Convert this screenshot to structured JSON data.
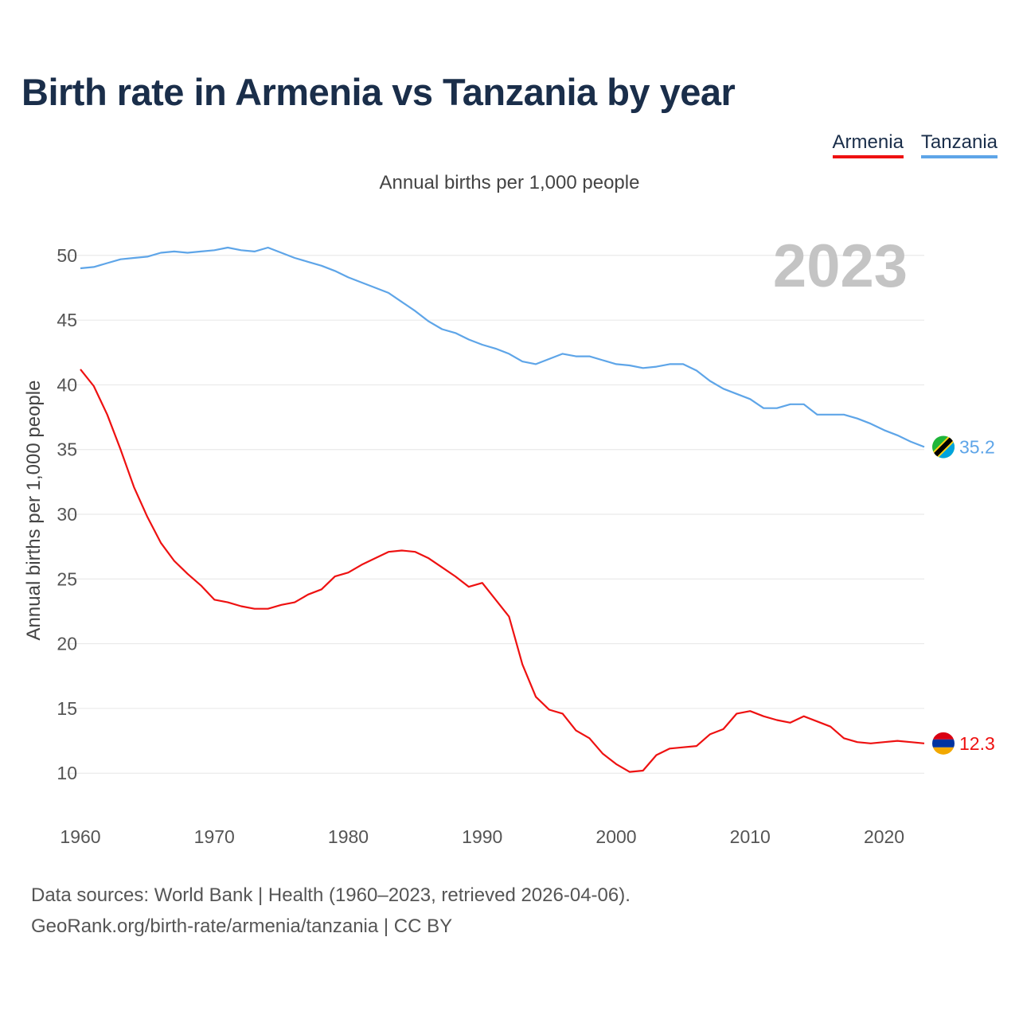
{
  "title": "Birth rate in Armenia vs Tanzania by year",
  "subtitle": "Annual births per 1,000 people",
  "legend": {
    "armenia": "Armenia",
    "tanzania": "Tanzania"
  },
  "footer": {
    "line1": "Data sources: World Bank | Health (1960–2023, retrieved 2026-04-06).",
    "line2": "GeoRank.org/birth-rate/armenia/tanzania | CC BY"
  },
  "colors": {
    "armenia": "#ee1111",
    "tanzania": "#5ea5e8",
    "title": "#1a2e4a",
    "grid": "#e6e6e6"
  },
  "chart_data": {
    "type": "line",
    "ylabel": "Annual births per 1,000 people",
    "xlabel": "",
    "ylim": [
      7,
      53
    ],
    "xlim": [
      1960,
      2023
    ],
    "x_ticks": [
      1960,
      1970,
      1980,
      1990,
      2000,
      2010,
      2020
    ],
    "y_ticks": [
      10,
      15,
      20,
      25,
      30,
      35,
      40,
      45,
      50
    ],
    "year_label": "2023",
    "grid": true,
    "legend_position": "top-right",
    "x": [
      1960,
      1961,
      1962,
      1963,
      1964,
      1965,
      1966,
      1967,
      1968,
      1969,
      1970,
      1971,
      1972,
      1973,
      1974,
      1975,
      1976,
      1977,
      1978,
      1979,
      1980,
      1981,
      1982,
      1983,
      1984,
      1985,
      1986,
      1987,
      1988,
      1989,
      1990,
      1991,
      1992,
      1993,
      1994,
      1995,
      1996,
      1997,
      1998,
      1999,
      2000,
      2001,
      2002,
      2003,
      2004,
      2005,
      2006,
      2007,
      2008,
      2009,
      2010,
      2011,
      2012,
      2013,
      2014,
      2015,
      2016,
      2017,
      2018,
      2019,
      2020,
      2021,
      2022,
      2023
    ],
    "series": [
      {
        "name": "Armenia",
        "color": "#ee1111",
        "end_label": "12.3",
        "flag": "armenia",
        "values": [
          41.2,
          39.9,
          37.7,
          35.0,
          32.1,
          29.8,
          27.8,
          26.4,
          25.4,
          24.5,
          23.4,
          23.2,
          22.9,
          22.7,
          22.7,
          23.0,
          23.2,
          23.8,
          24.2,
          25.2,
          25.5,
          26.1,
          26.6,
          27.1,
          27.2,
          27.1,
          26.6,
          25.9,
          25.2,
          24.4,
          24.7,
          23.4,
          22.1,
          18.4,
          15.9,
          14.9,
          14.6,
          13.3,
          12.7,
          11.5,
          10.7,
          10.1,
          10.2,
          11.4,
          11.9,
          12.0,
          12.1,
          13.0,
          13.4,
          14.6,
          14.8,
          14.4,
          14.1,
          13.9,
          14.4,
          14.0,
          13.6,
          12.7,
          12.4,
          12.3,
          12.4,
          12.5,
          12.4,
          12.3
        ]
      },
      {
        "name": "Tanzania",
        "color": "#5ea5e8",
        "end_label": "35.2",
        "flag": "tanzania",
        "values": [
          49.0,
          49.1,
          49.4,
          49.7,
          49.8,
          49.9,
          50.2,
          50.3,
          50.2,
          50.3,
          50.4,
          50.6,
          50.4,
          50.3,
          50.6,
          50.2,
          49.8,
          49.5,
          49.2,
          48.8,
          48.3,
          47.9,
          47.5,
          47.1,
          46.4,
          45.7,
          44.9,
          44.3,
          44.0,
          43.5,
          43.1,
          42.8,
          42.4,
          41.8,
          41.6,
          42.0,
          42.4,
          42.2,
          42.2,
          41.9,
          41.6,
          41.5,
          41.3,
          41.4,
          41.6,
          41.6,
          41.1,
          40.3,
          39.7,
          39.3,
          38.9,
          38.2,
          38.2,
          38.5,
          38.5,
          37.7,
          37.7,
          37.7,
          37.4,
          37.0,
          36.5,
          36.1,
          35.6,
          35.2
        ]
      }
    ]
  }
}
